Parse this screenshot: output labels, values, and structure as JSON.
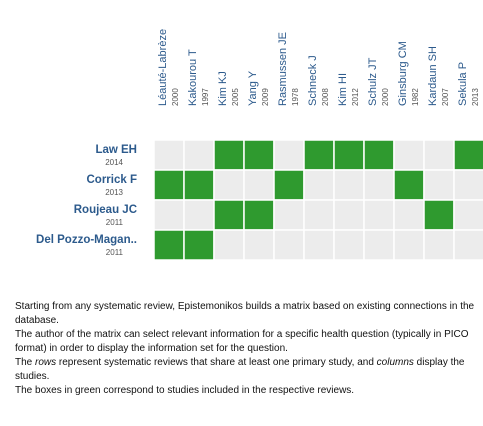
{
  "matrix": {
    "columns": [
      {
        "name": "Léauté-Labrèze",
        "year": "2000"
      },
      {
        "name": "Kakourou T",
        "year": "1997"
      },
      {
        "name": "Kim KJ",
        "year": "2005"
      },
      {
        "name": "Yang Y",
        "year": "2009"
      },
      {
        "name": "Rasmussen JE",
        "year": "1978"
      },
      {
        "name": "Schneck J",
        "year": "2008"
      },
      {
        "name": "Kim HI",
        "year": "2012"
      },
      {
        "name": "Schulz JT",
        "year": "2000"
      },
      {
        "name": "Ginsburg CM",
        "year": "1982"
      },
      {
        "name": "Kardaun SH",
        "year": "2007"
      },
      {
        "name": "Sekula P",
        "year": "2013"
      }
    ],
    "rows": [
      {
        "name": "Law EH",
        "year": "2014",
        "cells": [
          0,
          0,
          1,
          1,
          0,
          1,
          1,
          1,
          0,
          0,
          1
        ]
      },
      {
        "name": "Corrick F",
        "year": "2013",
        "cells": [
          1,
          1,
          0,
          0,
          1,
          0,
          0,
          0,
          1,
          0,
          0
        ]
      },
      {
        "name": "Roujeau JC",
        "year": "2011",
        "cells": [
          0,
          0,
          1,
          1,
          0,
          0,
          0,
          0,
          0,
          1,
          0
        ]
      },
      {
        "name": "Del Pozzo-Magan..",
        "year": "2011",
        "cells": [
          1,
          1,
          0,
          0,
          0,
          0,
          0,
          0,
          0,
          0,
          0
        ]
      }
    ]
  },
  "notes": {
    "p1": "Starting from any systematic review, Epistemonikos builds a matrix based on existing connections in the database.",
    "p2": "The author of the matrix can select relevant information for a specific health question (typically in PICO format) in order to display the information set for the question.",
    "p3": [
      "The ",
      "rows",
      " represent systematic reviews that share at least one primary study, and ",
      "columns",
      " display the studies."
    ],
    "p4": "The boxes in green correspond to studies included in the respective reviews."
  }
}
